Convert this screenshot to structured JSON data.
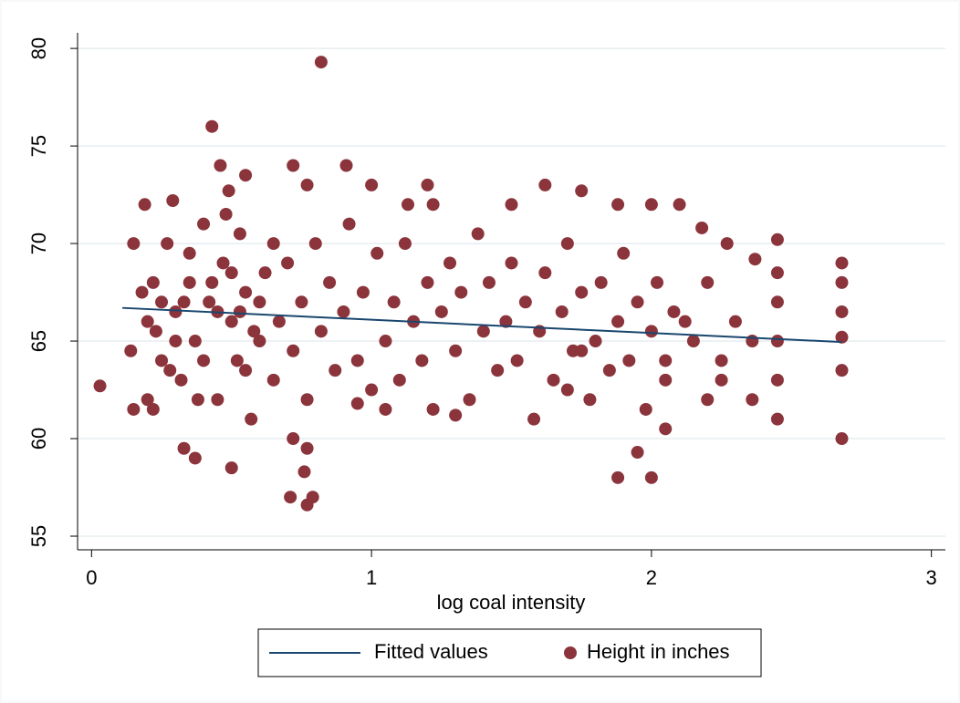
{
  "chart_data": {
    "type": "scatter",
    "x_label": "log coal intensity",
    "xlim": [
      -0.05,
      3.05
    ],
    "xticks": [
      0,
      1,
      2,
      3
    ],
    "ylim": [
      54.3,
      80.8
    ],
    "yticks": [
      55,
      60,
      65,
      70,
      75,
      80
    ],
    "grid": true,
    "legend": "bottom",
    "series": [
      {
        "name": "Fitted values",
        "type": "line",
        "color": "#1a476f",
        "x": [
          0.11,
          2.68
        ],
        "values": [
          66.7,
          64.95
        ]
      },
      {
        "name": "Height in inches",
        "type": "scatter",
        "color": "#8b343b",
        "x": [
          0.03,
          0.43,
          0.82,
          0.71,
          0.77,
          0.79,
          0.76,
          0.77,
          0.5,
          0.37,
          0.33,
          0.72,
          1.88,
          2.0,
          1.95,
          2.68,
          2.68,
          2.45,
          0.72,
          0.91,
          0.46,
          0.55,
          0.49,
          0.77,
          1.0,
          1.2,
          1.62,
          1.75,
          2.1,
          2.0,
          1.88,
          1.5,
          1.13,
          1.22,
          0.29,
          0.19,
          0.15,
          0.15,
          0.14,
          0.2,
          0.22,
          2.18,
          2.27,
          2.37,
          2.45,
          2.45,
          2.45,
          2.45,
          2.45,
          2.36,
          2.36,
          2.3,
          2.25,
          2.25,
          2.2,
          2.2,
          2.15,
          2.12,
          2.05,
          2.05,
          2.68,
          2.68,
          2.68,
          2.68,
          0.2,
          0.22,
          0.25,
          0.27,
          0.3,
          0.32,
          0.35,
          0.37,
          0.4,
          0.42,
          0.45,
          0.47,
          0.5,
          0.52,
          0.53,
          0.55,
          0.57,
          0.6,
          0.62,
          0.65,
          0.67,
          0.7,
          0.72,
          0.75,
          0.77,
          0.8,
          0.82,
          0.85,
          0.87,
          0.9,
          0.92,
          0.95,
          0.97,
          1.0,
          1.02,
          1.05,
          1.08,
          1.1,
          1.12,
          1.15,
          1.18,
          1.2,
          1.22,
          1.25,
          1.28,
          1.3,
          1.32,
          1.35,
          1.38,
          1.4,
          1.42,
          1.45,
          1.48,
          1.5,
          1.52,
          1.55,
          1.58,
          1.6,
          1.62,
          1.65,
          1.68,
          1.7,
          1.72,
          1.75,
          1.78,
          1.8,
          1.82,
          1.85,
          1.88,
          1.9,
          1.92,
          1.95,
          1.98,
          2.0,
          2.02,
          2.05,
          2.08,
          0.25,
          0.3,
          0.35,
          0.4,
          0.45,
          0.5,
          0.55,
          0.6,
          0.28,
          0.38,
          0.48,
          0.58,
          0.33,
          0.43,
          0.53,
          0.23,
          0.18,
          1.7,
          1.75,
          0.65,
          1.3,
          1.05,
          0.95
        ],
        "values": [
          62.7,
          76,
          79.3,
          57,
          56.6,
          57,
          58.3,
          59.5,
          58.5,
          59,
          59.5,
          60,
          58,
          58,
          59.3,
          60,
          69,
          70.2,
          74,
          74,
          74,
          73.5,
          72.7,
          73,
          73,
          73,
          73,
          72.7,
          72,
          72,
          72,
          72,
          72,
          72,
          72.2,
          72,
          70,
          61.5,
          64.5,
          62,
          61.5,
          70.8,
          70,
          69.2,
          68.5,
          67,
          65,
          63,
          61,
          62,
          65,
          66,
          64,
          63,
          68,
          62,
          65,
          66,
          60.5,
          64,
          66.5,
          65.2,
          63.5,
          68,
          66,
          68,
          64,
          70,
          66.5,
          63,
          68,
          65,
          71,
          67,
          62,
          69,
          66,
          64,
          70.5,
          67.5,
          61,
          65,
          68.5,
          63,
          66,
          69,
          64.5,
          67,
          62,
          70,
          65.5,
          68,
          63.5,
          66.5,
          71,
          64,
          67.5,
          62.5,
          69.5,
          65,
          67,
          63,
          70,
          66,
          64,
          68,
          61.5,
          66.5,
          69,
          64.5,
          67.5,
          62,
          70.5,
          65.5,
          68,
          63.5,
          66,
          69,
          64,
          67,
          61,
          65.5,
          68.5,
          63,
          66.5,
          70,
          64.5,
          67.5,
          62,
          65,
          68,
          63.5,
          66,
          69.5,
          64,
          67,
          61.5,
          65.5,
          68,
          63,
          66.5,
          67,
          65,
          69.5,
          64,
          66.5,
          68.5,
          63.5,
          67,
          63.5,
          62,
          71.5,
          65.5,
          67,
          68,
          66.5,
          65.5,
          67.5,
          62.5,
          64.5,
          70,
          61.2,
          61.5,
          61.8
        ]
      }
    ]
  }
}
